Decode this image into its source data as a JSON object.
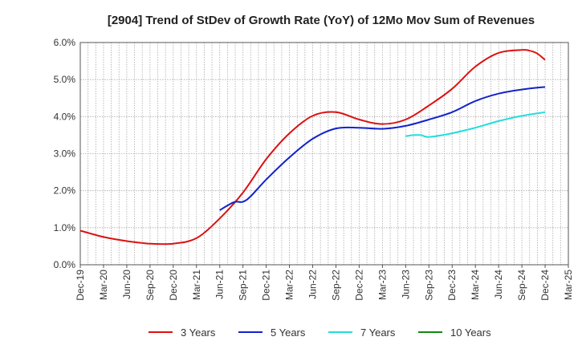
{
  "chart_data": {
    "type": "line",
    "title": "[2904]  Trend of StDev of Growth Rate (YoY) of 12Mo Mov Sum of Revenues",
    "xlabel": "",
    "ylabel": "",
    "ylim": [
      0,
      6
    ],
    "y_ticks": [
      "0.0%",
      "1.0%",
      "2.0%",
      "3.0%",
      "4.0%",
      "5.0%",
      "6.0%"
    ],
    "x_ticks": [
      "Dec-19",
      "Mar-20",
      "Jun-20",
      "Sep-20",
      "Dec-20",
      "Mar-21",
      "Jun-21",
      "Sep-21",
      "Dec-21",
      "Mar-22",
      "Jun-22",
      "Sep-22",
      "Dec-22",
      "Mar-23",
      "Jun-23",
      "Sep-23",
      "Dec-23",
      "Mar-24",
      "Jun-24",
      "Sep-24",
      "Dec-24",
      "Mar-25"
    ],
    "grid": true,
    "legend_position": "bottom",
    "series": [
      {
        "name": "3 Years",
        "color": "#dd1111",
        "x": [
          "Dec-19",
          "Mar-20",
          "Jun-20",
          "Sep-20",
          "Dec-20",
          "Mar-21",
          "Jun-21",
          "Sep-21",
          "Dec-21",
          "Mar-22",
          "Jun-22",
          "Sep-22",
          "Dec-22",
          "Mar-23",
          "Jun-23",
          "Sep-23",
          "Dec-23",
          "Mar-24",
          "Jun-24",
          "Sep-24",
          "Oct-24",
          "Nov-24",
          "Dec-24"
        ],
        "values": [
          0.92,
          0.75,
          0.64,
          0.57,
          0.57,
          0.72,
          1.25,
          1.95,
          2.85,
          3.55,
          4.02,
          4.12,
          3.92,
          3.8,
          3.92,
          4.3,
          4.75,
          5.35,
          5.72,
          5.8,
          5.78,
          5.7,
          5.53
        ]
      },
      {
        "name": "5 Years",
        "color": "#1122cc",
        "x": [
          "Jun-21",
          "Jul-21",
          "Aug-21",
          "Sep-21",
          "Oct-21",
          "Dec-21",
          "Mar-22",
          "Jun-22",
          "Sep-22",
          "Dec-22",
          "Mar-23",
          "Jun-23",
          "Sep-23",
          "Dec-23",
          "Mar-24",
          "Jun-24",
          "Sep-24",
          "Dec-24"
        ],
        "values": [
          1.47,
          1.6,
          1.7,
          1.7,
          1.85,
          2.3,
          2.9,
          3.4,
          3.68,
          3.7,
          3.67,
          3.75,
          3.92,
          4.12,
          4.42,
          4.62,
          4.73,
          4.8
        ]
      },
      {
        "name": "7 Years",
        "color": "#22dddd",
        "x": [
          "Jun-23",
          "Jul-23",
          "Aug-23",
          "Sep-23",
          "Dec-23",
          "Mar-24",
          "Jun-24",
          "Sep-24",
          "Dec-24"
        ],
        "values": [
          3.47,
          3.5,
          3.5,
          3.45,
          3.55,
          3.7,
          3.88,
          4.02,
          4.12
        ]
      },
      {
        "name": "10 Years",
        "color": "#118811",
        "x": [],
        "values": []
      }
    ]
  }
}
